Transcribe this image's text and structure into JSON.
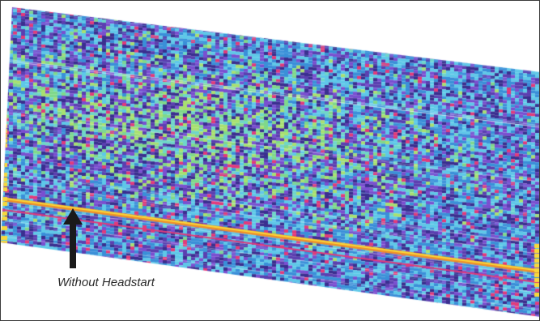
{
  "figure": {
    "annotation": "Without Headstart",
    "colors": {
      "background": "#ffffff",
      "frame": "#3a3a3a",
      "arrow": "#1a1a1a",
      "palette": [
        "#3a2f8f",
        "#5b3fb0",
        "#7a4fd0",
        "#3a8fd8",
        "#5ec8e8",
        "#6fd6c8",
        "#7fd88a",
        "#a8e070",
        "#e23a7a",
        "#f0902a",
        "#f8d83a"
      ]
    }
  }
}
